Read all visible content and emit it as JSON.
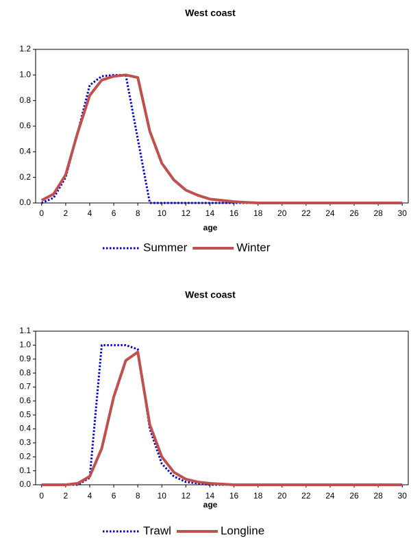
{
  "chart_data": [
    {
      "type": "line",
      "title": "West coast",
      "x_label": "age",
      "x": [
        0,
        1,
        2,
        3,
        4,
        5,
        6,
        7,
        8,
        9,
        10,
        11,
        12,
        13,
        14,
        15,
        16,
        17,
        18,
        19,
        20,
        21,
        22,
        23,
        24,
        25,
        26,
        27,
        28,
        29,
        30
      ],
      "xlim": [
        -0.5,
        30.5
      ],
      "xticks": [
        0,
        2,
        4,
        6,
        8,
        10,
        12,
        14,
        16,
        18,
        20,
        22,
        24,
        26,
        28,
        30
      ],
      "ylim": [
        0,
        1.2
      ],
      "yticks": [
        {
          "value": 0,
          "label": "0.0"
        },
        0.2,
        0.4,
        0.6,
        0.8,
        {
          "value": 1,
          "label": "1.0"
        },
        1.2
      ],
      "grid": false,
      "series": [
        {
          "name": "Summer",
          "color": "#0000cc",
          "dash": "dotted",
          "values": [
            0,
            0.04,
            0.2,
            0.55,
            0.92,
            0.99,
            1,
            1,
            0.5,
            0,
            0,
            0,
            0,
            0,
            0,
            0,
            0,
            0,
            0,
            0,
            0,
            0,
            0,
            0,
            0,
            0,
            0,
            0,
            0,
            0,
            0
          ]
        },
        {
          "name": "Winter",
          "color": "#c0504d",
          "dash": "solid",
          "values": [
            0.02,
            0.07,
            0.22,
            0.55,
            0.84,
            0.96,
            0.99,
            1,
            0.98,
            0.56,
            0.31,
            0.18,
            0.1,
            0.06,
            0.03,
            0.02,
            0.01,
            0.005,
            0,
            0,
            0,
            0,
            0,
            0,
            0,
            0,
            0,
            0,
            0,
            0,
            0
          ]
        }
      ]
    },
    {
      "type": "line",
      "title": "West coast",
      "x_label": "age",
      "x": [
        0,
        1,
        2,
        3,
        4,
        5,
        6,
        7,
        8,
        9,
        10,
        11,
        12,
        13,
        14,
        15,
        16,
        17,
        18,
        19,
        20,
        21,
        22,
        23,
        24,
        25,
        26,
        27,
        28,
        29,
        30
      ],
      "xlim": [
        -0.5,
        30.5
      ],
      "xticks": [
        0,
        2,
        4,
        6,
        8,
        10,
        12,
        14,
        16,
        18,
        20,
        22,
        24,
        26,
        28,
        30
      ],
      "ylim": [
        0,
        1.1
      ],
      "yticks": [
        {
          "value": 0,
          "label": "0.0"
        },
        0.1,
        0.2,
        0.3,
        0.4,
        0.5,
        0.6,
        0.7,
        0.8,
        0.9,
        {
          "value": 1,
          "label": "1.0"
        },
        1.1
      ],
      "grid": false,
      "series": [
        {
          "name": "Trawl",
          "color": "#0000cc",
          "dash": "dotted",
          "values": [
            0,
            0,
            0,
            0,
            0.05,
            1,
            1,
            1,
            0.97,
            0.4,
            0.15,
            0.06,
            0.02,
            0.01,
            0,
            0,
            0,
            0,
            0,
            0,
            0,
            0,
            0,
            0,
            0,
            0,
            0,
            0,
            0,
            0,
            0
          ]
        },
        {
          "name": "Longline",
          "color": "#c0504d",
          "dash": "solid",
          "values": [
            0,
            0,
            0,
            0.01,
            0.06,
            0.26,
            0.63,
            0.89,
            0.95,
            0.43,
            0.2,
            0.09,
            0.04,
            0.02,
            0.01,
            0.005,
            0,
            0,
            0,
            0,
            0,
            0,
            0,
            0,
            0,
            0,
            0,
            0,
            0,
            0,
            0
          ]
        }
      ]
    }
  ]
}
